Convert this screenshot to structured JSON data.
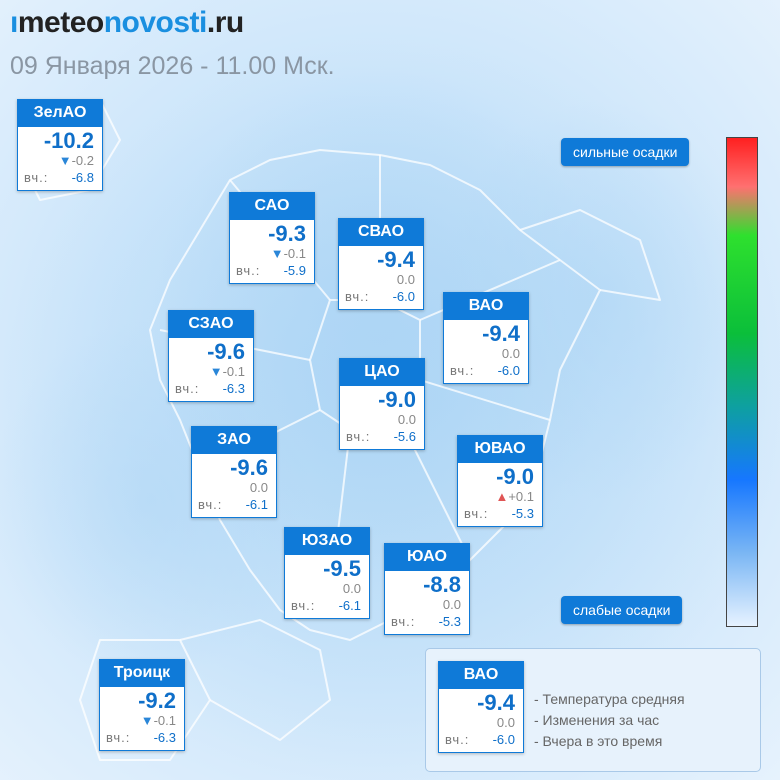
{
  "brand": {
    "prefix": "ı",
    "meteo": "meteo",
    "novosti": "novosti",
    "ru": ".ru"
  },
  "subtitle": "09 Января 2026 - 11.00 Мск.",
  "yesterday_label": "вч.:",
  "districts": [
    {
      "name": "ЗелАО",
      "temp": "-10.2",
      "change": "-0.2",
      "trend": "down",
      "yesterday": "-6.8"
    },
    {
      "name": "САО",
      "temp": "-9.3",
      "change": "-0.1",
      "trend": "down",
      "yesterday": "-5.9"
    },
    {
      "name": "СВАО",
      "temp": "-9.4",
      "change": "0.0",
      "trend": "none",
      "yesterday": "-6.0"
    },
    {
      "name": "ВАО",
      "temp": "-9.4",
      "change": "0.0",
      "trend": "none",
      "yesterday": "-6.0"
    },
    {
      "name": "СЗАО",
      "temp": "-9.6",
      "change": "-0.1",
      "trend": "down",
      "yesterday": "-6.3"
    },
    {
      "name": "ЦАО",
      "temp": "-9.0",
      "change": "0.0",
      "trend": "none",
      "yesterday": "-5.6"
    },
    {
      "name": "ЗАО",
      "temp": "-9.6",
      "change": "0.0",
      "trend": "none",
      "yesterday": "-6.1"
    },
    {
      "name": "ЮВАО",
      "temp": "-9.0",
      "change": "+0.1",
      "trend": "up",
      "yesterday": "-5.3"
    },
    {
      "name": "ЮЗАО",
      "temp": "-9.5",
      "change": "0.0",
      "trend": "none",
      "yesterday": "-6.1"
    },
    {
      "name": "ЮАО",
      "temp": "-8.8",
      "change": "0.0",
      "trend": "none",
      "yesterday": "-5.3"
    },
    {
      "name": "Троицк",
      "temp": "-9.2",
      "change": "-0.1",
      "trend": "down",
      "yesterday": "-6.3"
    }
  ],
  "scale": {
    "top_label": "сильные осадки",
    "bottom_label": "слабые осадки"
  },
  "legend": {
    "sample": {
      "name": "ВАО",
      "temp": "-9.4",
      "change": "0.0",
      "yesterday": "-6.0"
    },
    "items": [
      "- Температура средняя",
      "- Изменения за час",
      "- Вчера в это время"
    ]
  },
  "colors": {
    "accent": "#0f7ad8",
    "temp": "#0f6fc9",
    "down": "#2a86d8",
    "up": "#e05555"
  }
}
